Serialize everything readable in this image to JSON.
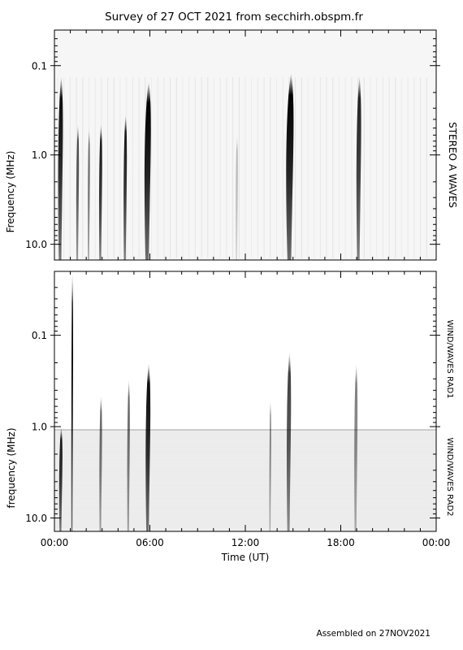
{
  "title": "Survey of 27 OCT 2021 from secchirh.obspm.fr",
  "footer": "Assembled on 27NOV2021",
  "chart_data": [
    {
      "type": "heatmap",
      "panel": "top",
      "ylabel": "Frequency (MHz)",
      "right_label": "STEREO A WAVES",
      "y_scale": "log-inverted",
      "ylim": [
        15,
        0.04
      ],
      "y_ticks": [
        {
          "value": 0.1,
          "label": "0.1"
        },
        {
          "value": 1.0,
          "label": "1.0"
        },
        {
          "value": 10.0,
          "label": "10.0"
        }
      ],
      "xlim": [
        0,
        24
      ],
      "bursts": [
        {
          "t": 0.45,
          "fmax": 0.13,
          "strength": 0.95,
          "width": 0.22
        },
        {
          "t": 1.5,
          "fmax": 0.45,
          "strength": 0.7,
          "width": 0.12
        },
        {
          "t": 2.2,
          "fmax": 0.5,
          "strength": 0.55,
          "width": 0.1
        },
        {
          "t": 2.95,
          "fmax": 0.45,
          "strength": 0.9,
          "width": 0.14
        },
        {
          "t": 4.5,
          "fmax": 0.35,
          "strength": 0.9,
          "width": 0.15
        },
        {
          "t": 5.95,
          "fmax": 0.15,
          "strength": 1.0,
          "width": 0.3
        },
        {
          "t": 14.9,
          "fmax": 0.12,
          "strength": 1.0,
          "width": 0.35
        },
        {
          "t": 19.2,
          "fmax": 0.13,
          "strength": 0.85,
          "width": 0.22
        },
        {
          "t": 11.5,
          "fmax": 0.6,
          "strength": 0.25,
          "width": 0.1
        }
      ]
    },
    {
      "type": "heatmap",
      "panel": "bottom",
      "ylabel": "frequency (MHz)",
      "right_labels": [
        "WIND/WAVES RAD1",
        "WIND/WAVES RAD2"
      ],
      "y_scale": "log-inverted",
      "ylim": [
        14,
        0.02
      ],
      "y_ticks": [
        {
          "value": 0.1,
          "label": "0.1"
        },
        {
          "value": 1.0,
          "label": "1.0"
        },
        {
          "value": 10.0,
          "label": "10.0"
        }
      ],
      "xlim": [
        0,
        24
      ],
      "x_ticks": [
        {
          "value": 0,
          "label": "00:00"
        },
        {
          "value": 6,
          "label": "06:00"
        },
        {
          "value": 12,
          "label": "12:00"
        },
        {
          "value": 18,
          "label": "18:00"
        },
        {
          "value": 24,
          "label": "00:00"
        }
      ],
      "xlabel": "Time (UT)",
      "bursts": [
        {
          "t": 0.45,
          "fmax": 1.0,
          "strength": 0.9,
          "width": 0.15
        },
        {
          "t": 1.15,
          "fmax": 0.02,
          "strength": 1.0,
          "width": 0.08
        },
        {
          "t": 2.95,
          "fmax": 0.45,
          "strength": 0.6,
          "width": 0.12
        },
        {
          "t": 4.7,
          "fmax": 0.3,
          "strength": 0.6,
          "width": 0.12
        },
        {
          "t": 5.95,
          "fmax": 0.2,
          "strength": 0.95,
          "width": 0.22
        },
        {
          "t": 13.6,
          "fmax": 0.5,
          "strength": 0.5,
          "width": 0.06
        },
        {
          "t": 14.8,
          "fmax": 0.15,
          "strength": 0.75,
          "width": 0.2
        },
        {
          "t": 19.0,
          "fmax": 0.2,
          "strength": 0.5,
          "width": 0.15
        }
      ]
    }
  ]
}
